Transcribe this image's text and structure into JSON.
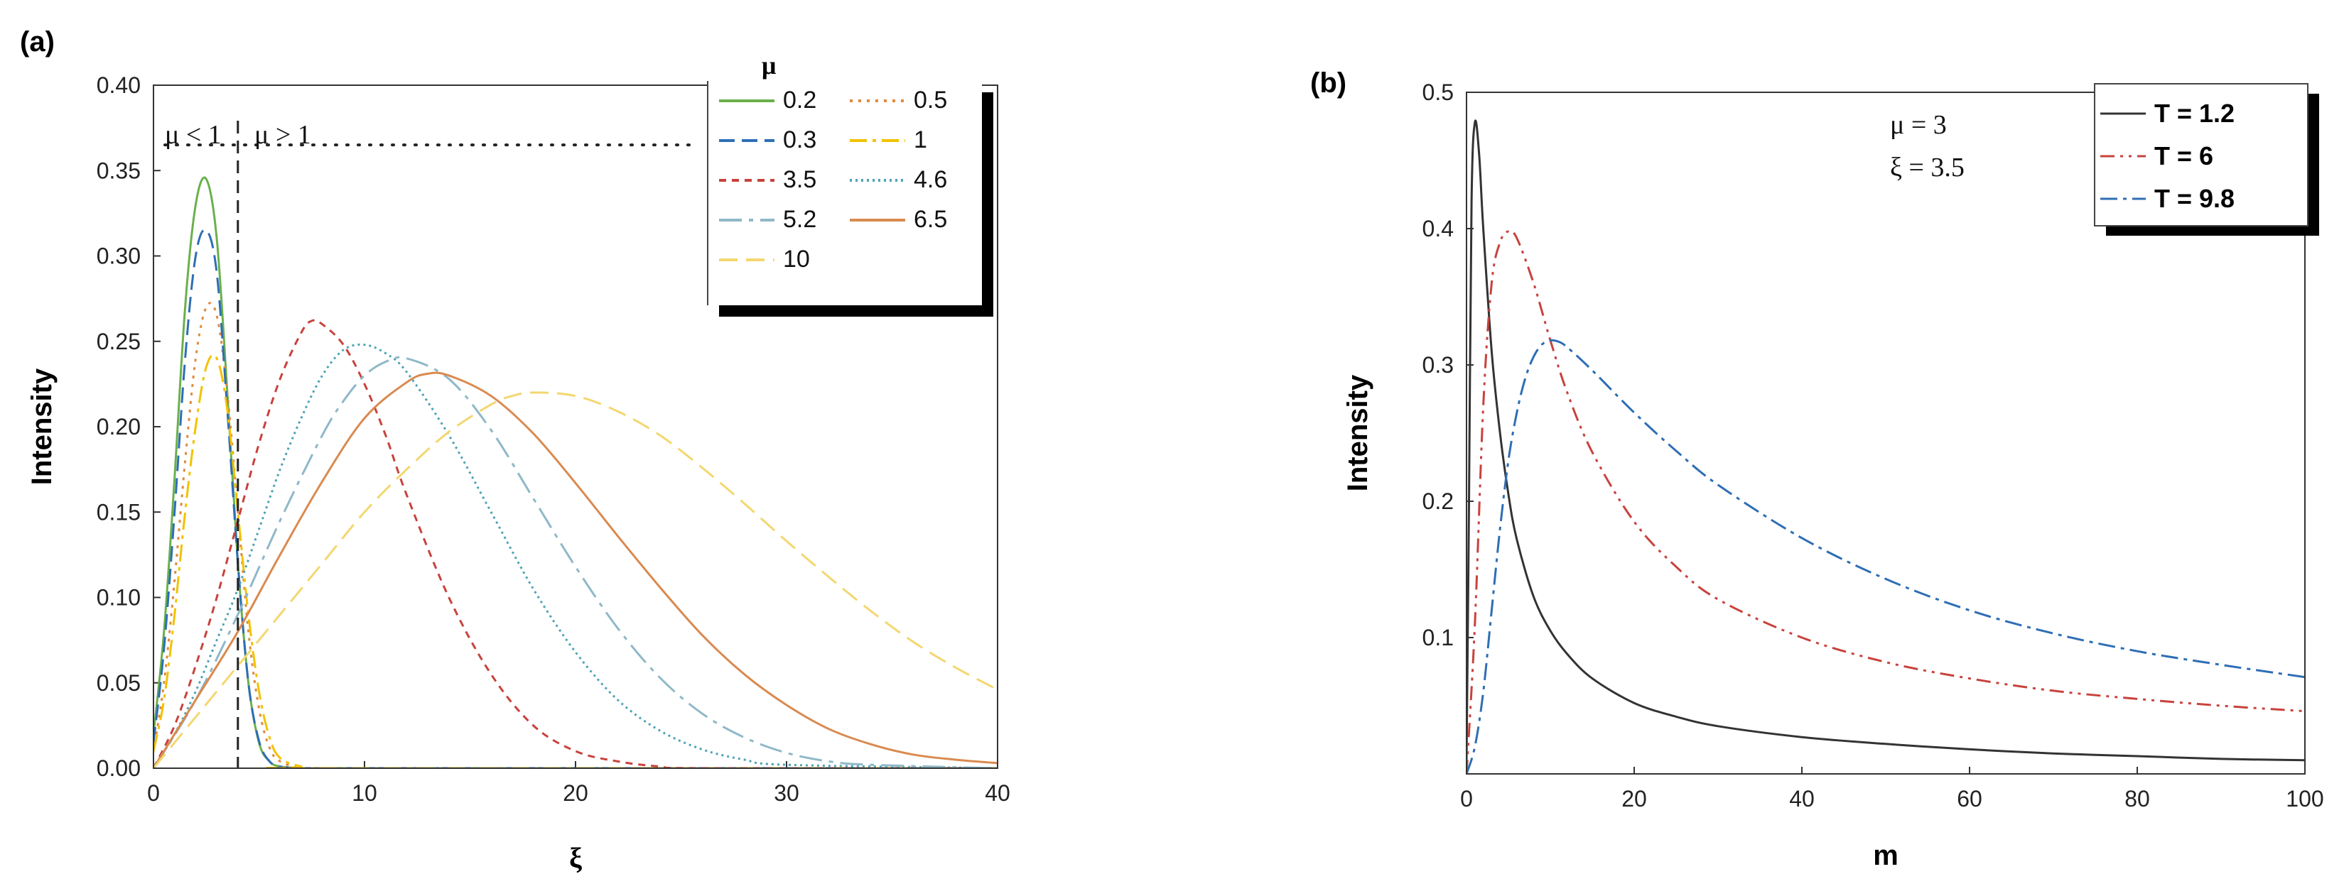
{
  "chart_data": [
    {
      "panel": "(a)",
      "type": "line",
      "title": "",
      "xlabel": "ξ",
      "ylabel": "Intensity",
      "xlim": [
        0,
        40
      ],
      "ylim": [
        0,
        0.4
      ],
      "xticks": [
        "0",
        "10",
        "20",
        "30",
        "40"
      ],
      "yticks": [
        "0.00",
        "0.05",
        "0.10",
        "0.15",
        "0.20",
        "0.25",
        "0.30",
        "0.35",
        "0.40"
      ],
      "legend_title": "μ",
      "legend_position": "top-right",
      "annotations": {
        "left": "μ < 1",
        "right": "μ > 1",
        "divider_x": 4,
        "dotted_line_y": 0.365
      },
      "series": [
        {
          "name": "0.2",
          "color": "#6ab04c",
          "dash": "solid",
          "x": [
            0,
            0.5,
            1,
            1.5,
            2,
            2.5,
            3,
            3.5,
            4,
            4.5,
            5,
            5.5,
            6,
            7,
            8,
            40
          ],
          "values": [
            0.02,
            0.08,
            0.17,
            0.27,
            0.33,
            0.345,
            0.31,
            0.22,
            0.12,
            0.05,
            0.015,
            0.004,
            0.001,
            0,
            0,
            0
          ]
        },
        {
          "name": "0.5",
          "color": "#e08a3c",
          "dash": "dot",
          "x": [
            0,
            0.5,
            1,
            1.5,
            2,
            2.5,
            3,
            3.5,
            4,
            4.5,
            5,
            5.5,
            6,
            7,
            8,
            40
          ],
          "values": [
            0.01,
            0.05,
            0.11,
            0.18,
            0.24,
            0.27,
            0.265,
            0.22,
            0.15,
            0.08,
            0.035,
            0.012,
            0.004,
            0,
            0,
            0
          ]
        },
        {
          "name": "0.3",
          "color": "#2e6eb5",
          "dash": "dash",
          "x": [
            0,
            0.5,
            1,
            1.5,
            2,
            2.5,
            3,
            3.5,
            4,
            4.5,
            5,
            5.5,
            6,
            7,
            8,
            40
          ],
          "values": [
            0.015,
            0.07,
            0.15,
            0.24,
            0.3,
            0.315,
            0.29,
            0.21,
            0.12,
            0.05,
            0.016,
            0.004,
            0.001,
            0,
            0,
            0
          ]
        },
        {
          "name": "1",
          "color": "#f2c200",
          "dash": "dashdot",
          "x": [
            0,
            0.5,
            1,
            1.5,
            2,
            2.5,
            3,
            3.5,
            4,
            4.5,
            5,
            5.5,
            6,
            7,
            8,
            40
          ],
          "values": [
            0.01,
            0.04,
            0.09,
            0.15,
            0.2,
            0.235,
            0.24,
            0.21,
            0.15,
            0.09,
            0.045,
            0.018,
            0.006,
            0.001,
            0,
            0
          ]
        },
        {
          "name": "3.5",
          "color": "#c8423c",
          "dash": "shortdash",
          "x": [
            0,
            1,
            2,
            3,
            4,
            5,
            6,
            7,
            7.5,
            8,
            9,
            10,
            11,
            12,
            14,
            16,
            18,
            20,
            22,
            24,
            26,
            40
          ],
          "values": [
            0,
            0.025,
            0.06,
            0.1,
            0.145,
            0.19,
            0.228,
            0.255,
            0.262,
            0.26,
            0.248,
            0.225,
            0.195,
            0.16,
            0.1,
            0.055,
            0.025,
            0.01,
            0.004,
            0.001,
            0,
            0
          ]
        },
        {
          "name": "4.6",
          "color": "#4ea3b5",
          "dash": "finedot",
          "x": [
            0,
            1,
            2,
            3,
            4,
            5,
            6,
            7,
            8,
            9,
            10,
            11,
            12,
            14,
            16,
            18,
            20,
            22,
            24,
            26,
            28,
            30,
            40
          ],
          "values": [
            0,
            0.02,
            0.045,
            0.075,
            0.105,
            0.14,
            0.175,
            0.205,
            0.23,
            0.245,
            0.248,
            0.243,
            0.232,
            0.195,
            0.15,
            0.105,
            0.068,
            0.04,
            0.022,
            0.011,
            0.005,
            0.002,
            0
          ]
        },
        {
          "name": "5.2",
          "color": "#8fb8c8",
          "dash": "dashdotlong",
          "x": [
            0,
            2,
            4,
            6,
            8,
            9,
            10,
            11,
            12,
            14,
            16,
            18,
            20,
            22,
            24,
            26,
            28,
            30,
            32,
            34,
            40
          ],
          "values": [
            0,
            0.04,
            0.09,
            0.145,
            0.195,
            0.215,
            0.23,
            0.238,
            0.24,
            0.228,
            0.198,
            0.158,
            0.118,
            0.082,
            0.053,
            0.032,
            0.018,
            0.009,
            0.004,
            0.002,
            0
          ]
        },
        {
          "name": "6.5",
          "color": "#d98a50",
          "dash": "solid",
          "x": [
            0,
            2,
            4,
            6,
            8,
            10,
            12,
            13,
            14,
            16,
            18,
            20,
            22,
            24,
            26,
            28,
            30,
            32,
            34,
            36,
            38,
            40
          ],
          "values": [
            0,
            0.04,
            0.08,
            0.125,
            0.168,
            0.205,
            0.226,
            0.231,
            0.23,
            0.218,
            0.196,
            0.167,
            0.136,
            0.106,
            0.078,
            0.055,
            0.037,
            0.023,
            0.014,
            0.008,
            0.005,
            0.003
          ]
        },
        {
          "name": "10",
          "color": "#f3d770",
          "dash": "longdash",
          "x": [
            0,
            2,
            4,
            6,
            8,
            10,
            12,
            14,
            16,
            17,
            18,
            20,
            22,
            24,
            26,
            28,
            30,
            32,
            34,
            36,
            38,
            40
          ],
          "values": [
            0,
            0.03,
            0.06,
            0.09,
            0.12,
            0.15,
            0.175,
            0.197,
            0.213,
            0.218,
            0.22,
            0.218,
            0.209,
            0.195,
            0.176,
            0.155,
            0.133,
            0.112,
            0.092,
            0.074,
            0.059,
            0.046
          ]
        }
      ]
    },
    {
      "panel": "(b)",
      "type": "line",
      "title": "",
      "xlabel": "m",
      "ylabel": "Intensity",
      "xlim": [
        0,
        100
      ],
      "ylim": [
        0,
        0.5
      ],
      "xticks": [
        "0",
        "20",
        "40",
        "60",
        "80",
        "100"
      ],
      "yticks": [
        "0.1",
        "0.2",
        "0.3",
        "0.4",
        "0.5"
      ],
      "legend_position": "top-right",
      "annotations": {
        "mu": "μ = 3",
        "xi": "ξ = 3.5"
      },
      "series": [
        {
          "name": "T = 1.2",
          "color": "#333333",
          "dash": "solid",
          "x": [
            0,
            0.3,
            0.6,
            1,
            1.5,
            2,
            3,
            4,
            5,
            6,
            8,
            10,
            12,
            15,
            20,
            25,
            30,
            40,
            50,
            60,
            70,
            80,
            90,
            100
          ],
          "values": [
            0.01,
            0.2,
            0.42,
            0.478,
            0.455,
            0.4,
            0.31,
            0.25,
            0.205,
            0.172,
            0.13,
            0.105,
            0.088,
            0.07,
            0.052,
            0.042,
            0.035,
            0.027,
            0.022,
            0.018,
            0.015,
            0.013,
            0.011,
            0.01
          ]
        },
        {
          "name": "T = 6",
          "color": "#c8423c",
          "dash": "dashdotdot",
          "x": [
            0,
            1,
            2,
            3,
            4,
            5,
            6,
            8,
            10,
            12,
            15,
            20,
            25,
            30,
            40,
            50,
            60,
            70,
            80,
            90,
            100
          ],
          "values": [
            0,
            0.11,
            0.27,
            0.36,
            0.39,
            0.398,
            0.393,
            0.36,
            0.318,
            0.28,
            0.236,
            0.185,
            0.152,
            0.128,
            0.1,
            0.082,
            0.07,
            0.061,
            0.055,
            0.05,
            0.046
          ]
        },
        {
          "name": "T = 9.8",
          "color": "#2e6eb5",
          "dash": "dashdot",
          "x": [
            0,
            1,
            2,
            3,
            4,
            5,
            6,
            7,
            8,
            9,
            10,
            11,
            12,
            15,
            20,
            25,
            30,
            40,
            50,
            60,
            70,
            80,
            90,
            100
          ],
          "values": [
            0,
            0.02,
            0.06,
            0.12,
            0.18,
            0.23,
            0.265,
            0.29,
            0.306,
            0.315,
            0.318,
            0.317,
            0.313,
            0.296,
            0.265,
            0.237,
            0.212,
            0.173,
            0.143,
            0.12,
            0.103,
            0.09,
            0.08,
            0.071
          ]
        }
      ]
    }
  ]
}
